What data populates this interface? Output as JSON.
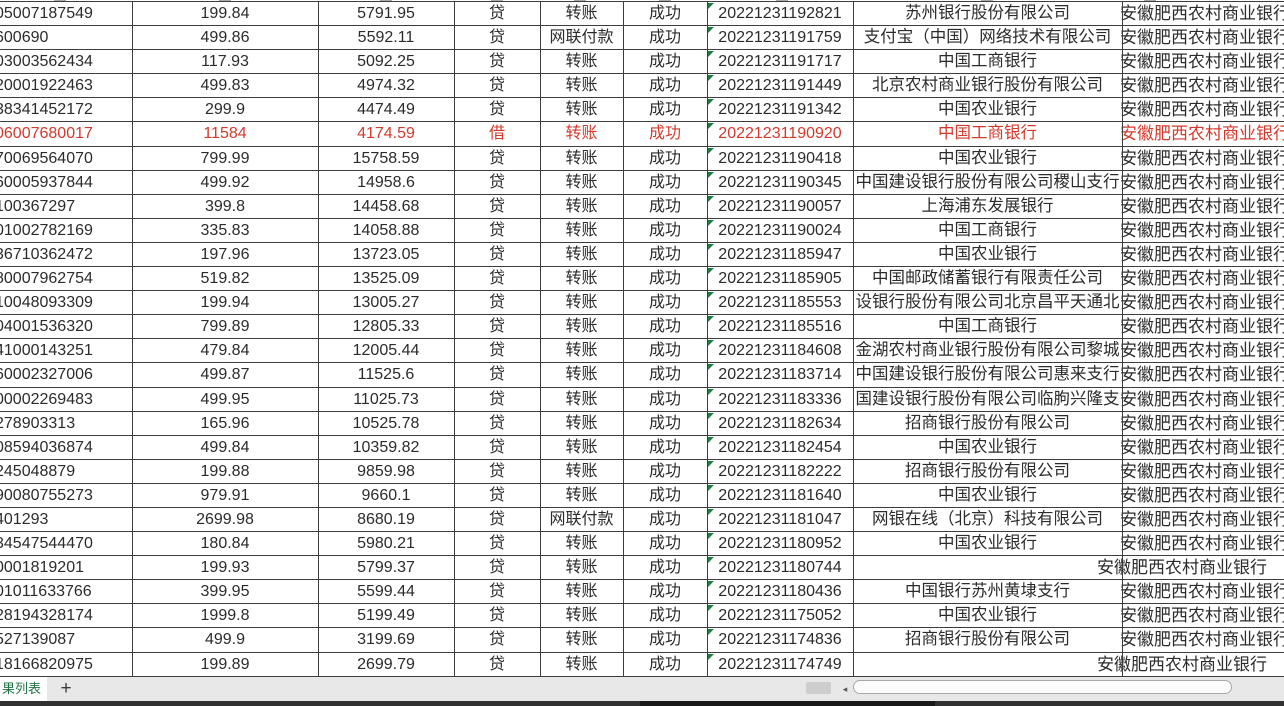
{
  "colors": {
    "red_row_text": "#d5392c",
    "error_indicator_green": "#1e7c41",
    "sheet_tab_green": "#217346",
    "grid_border": "#3d3d3d"
  },
  "table": {
    "column_keys": [
      "account",
      "amount",
      "balance",
      "dc",
      "type",
      "status",
      "time",
      "bank",
      "tail"
    ],
    "rows": [
      {
        "account": "05007187549",
        "amount": "199.84",
        "balance": "5791.95",
        "dc": "贷",
        "type": "转账",
        "status": "成功",
        "time": "20221231192821",
        "bank": "苏州银行股份有限公司",
        "tail": "安徽肥西农村商业银行",
        "red": false,
        "tail_shift": false
      },
      {
        "account": "600690",
        "amount": "499.86",
        "balance": "5592.11",
        "dc": "贷",
        "type": "网联付款",
        "status": "成功",
        "time": "20221231191759",
        "bank": "支付宝（中国）网络技术有限公司",
        "tail": "安徽肥西农村商业银行",
        "red": false,
        "tail_shift": false
      },
      {
        "account": "03003562434",
        "amount": "117.93",
        "balance": "5092.25",
        "dc": "贷",
        "type": "转账",
        "status": "成功",
        "time": "20221231191717",
        "bank": "中国工商银行",
        "tail": "安徽肥西农村商业银行",
        "red": false,
        "tail_shift": false
      },
      {
        "account": "20001922463",
        "amount": "499.83",
        "balance": "4974.32",
        "dc": "贷",
        "type": "转账",
        "status": "成功",
        "time": "20221231191449",
        "bank": "北京农村商业银行股份有限公司",
        "tail": "安徽肥西农村商业银行",
        "red": false,
        "tail_shift": false
      },
      {
        "account": "38341452172",
        "amount": "299.9",
        "balance": "4474.49",
        "dc": "贷",
        "type": "转账",
        "status": "成功",
        "time": "20221231191342",
        "bank": "中国农业银行",
        "tail": "安徽肥西农村商业银行",
        "red": false,
        "tail_shift": false
      },
      {
        "account": "06007680017",
        "amount": "11584",
        "balance": "4174.59",
        "dc": "借",
        "type": "转账",
        "status": "成功",
        "time": "20221231190920",
        "bank": "中国工商银行",
        "tail": "安徽肥西农村商业银行",
        "red": true,
        "tail_shift": false
      },
      {
        "account": "70069564070",
        "amount": "799.99",
        "balance": "15758.59",
        "dc": "贷",
        "type": "转账",
        "status": "成功",
        "time": "20221231190418",
        "bank": "中国农业银行",
        "tail": "安徽肥西农村商业银行",
        "red": false,
        "tail_shift": false
      },
      {
        "account": "60005937844",
        "amount": "499.92",
        "balance": "14958.6",
        "dc": "贷",
        "type": "转账",
        "status": "成功",
        "time": "20221231190345",
        "bank": "中国建设银行股份有限公司稷山支行",
        "tail": "安徽肥西农村商业银行",
        "red": false,
        "tail_shift": false
      },
      {
        "account": "100367297",
        "amount": "399.8",
        "balance": "14458.68",
        "dc": "贷",
        "type": "转账",
        "status": "成功",
        "time": "20221231190057",
        "bank": "上海浦东发展银行",
        "tail": "安徽肥西农村商业银行",
        "red": false,
        "tail_shift": false
      },
      {
        "account": "01002782169",
        "amount": "335.83",
        "balance": "14058.88",
        "dc": "贷",
        "type": "转账",
        "status": "成功",
        "time": "20221231190024",
        "bank": "中国工商银行",
        "tail": "安徽肥西农村商业银行",
        "red": false,
        "tail_shift": false
      },
      {
        "account": "36710362472",
        "amount": "197.96",
        "balance": "13723.05",
        "dc": "贷",
        "type": "转账",
        "status": "成功",
        "time": "20221231185947",
        "bank": "中国农业银行",
        "tail": "安徽肥西农村商业银行",
        "red": false,
        "tail_shift": false
      },
      {
        "account": "80007962754",
        "amount": "519.82",
        "balance": "13525.09",
        "dc": "贷",
        "type": "转账",
        "status": "成功",
        "time": "20221231185905",
        "bank": "中国邮政储蓄银行有限责任公司",
        "tail": "安徽肥西农村商业银行",
        "red": false,
        "tail_shift": false
      },
      {
        "account": "10048093309",
        "amount": "199.94",
        "balance": "13005.27",
        "dc": "贷",
        "type": "转账",
        "status": "成功",
        "time": "20221231185553",
        "bank": "设银行股份有限公司北京昌平天通北",
        "tail": "安徽肥西农村商业银行",
        "red": false,
        "tail_shift": false
      },
      {
        "account": "04001536320",
        "amount": "799.89",
        "balance": "12805.33",
        "dc": "贷",
        "type": "转账",
        "status": "成功",
        "time": "20221231185516",
        "bank": "中国工商银行",
        "tail": "安徽肥西农村商业银行",
        "red": false,
        "tail_shift": false
      },
      {
        "account": "41000143251",
        "amount": "479.84",
        "balance": "12005.44",
        "dc": "贷",
        "type": "转账",
        "status": "成功",
        "time": "20221231184608",
        "bank": "金湖农村商业银行股份有限公司黎城",
        "tail": "安徽肥西农村商业银行",
        "red": false,
        "tail_shift": false
      },
      {
        "account": "60002327006",
        "amount": "499.87",
        "balance": "11525.6",
        "dc": "贷",
        "type": "转账",
        "status": "成功",
        "time": "20221231183714",
        "bank": "中国建设银行股份有限公司惠来支行",
        "tail": "安徽肥西农村商业银行",
        "red": false,
        "tail_shift": false
      },
      {
        "account": "00002269483",
        "amount": "499.95",
        "balance": "11025.73",
        "dc": "贷",
        "type": "转账",
        "status": "成功",
        "time": "20221231183336",
        "bank": "国建设银行股份有限公司临朐兴隆支",
        "tail": "安徽肥西农村商业银行",
        "red": false,
        "tail_shift": false
      },
      {
        "account": "278903313",
        "amount": "165.96",
        "balance": "10525.78",
        "dc": "贷",
        "type": "转账",
        "status": "成功",
        "time": "20221231182634",
        "bank": "招商银行股份有限公司",
        "tail": "安徽肥西农村商业银行",
        "red": false,
        "tail_shift": false
      },
      {
        "account": "08594036874",
        "amount": "499.84",
        "balance": "10359.82",
        "dc": "贷",
        "type": "转账",
        "status": "成功",
        "time": "20221231182454",
        "bank": "中国农业银行",
        "tail": "安徽肥西农村商业银行",
        "red": false,
        "tail_shift": false
      },
      {
        "account": "245048879",
        "amount": "199.88",
        "balance": "9859.98",
        "dc": "贷",
        "type": "转账",
        "status": "成功",
        "time": "20221231182222",
        "bank": "招商银行股份有限公司",
        "tail": "安徽肥西农村商业银行",
        "red": false,
        "tail_shift": false
      },
      {
        "account": "90080755273",
        "amount": "979.91",
        "balance": "9660.1",
        "dc": "贷",
        "type": "转账",
        "status": "成功",
        "time": "20221231181640",
        "bank": "中国农业银行",
        "tail": "安徽肥西农村商业银行",
        "red": false,
        "tail_shift": false
      },
      {
        "account": "401293",
        "amount": "2699.98",
        "balance": "8680.19",
        "dc": "贷",
        "type": "网联付款",
        "status": "成功",
        "time": "20221231181047",
        "bank": "网银在线（北京）科技有限公司",
        "tail": "安徽肥西农村商业银行",
        "red": false,
        "tail_shift": false
      },
      {
        "account": "34547544470",
        "amount": "180.84",
        "balance": "5980.21",
        "dc": "贷",
        "type": "转账",
        "status": "成功",
        "time": "20221231180952",
        "bank": "中国农业银行",
        "tail": "安徽肥西农村商业银行",
        "red": false,
        "tail_shift": false
      },
      {
        "account": "0001819201",
        "amount": "199.93",
        "balance": "5799.37",
        "dc": "贷",
        "type": "转账",
        "status": "成功",
        "time": "20221231180744",
        "bank": "",
        "tail": "安徽肥西农村商业银行",
        "red": false,
        "tail_shift": true
      },
      {
        "account": "01011633766",
        "amount": "399.95",
        "balance": "5599.44",
        "dc": "贷",
        "type": "转账",
        "status": "成功",
        "time": "20221231180436",
        "bank": "中国银行苏州黄埭支行",
        "tail": "安徽肥西农村商业银行",
        "red": false,
        "tail_shift": false
      },
      {
        "account": "28194328174",
        "amount": "1999.8",
        "balance": "5199.49",
        "dc": "贷",
        "type": "转账",
        "status": "成功",
        "time": "20221231175052",
        "bank": "中国农业银行",
        "tail": "安徽肥西农村商业银行",
        "red": false,
        "tail_shift": false
      },
      {
        "account": "527139087",
        "amount": "499.9",
        "balance": "3199.69",
        "dc": "贷",
        "type": "转账",
        "status": "成功",
        "time": "20221231174836",
        "bank": "招商银行股份有限公司",
        "tail": "安徽肥西农村商业银行",
        "red": false,
        "tail_shift": false
      },
      {
        "account": "18166820975",
        "amount": "199.89",
        "balance": "2699.79",
        "dc": "贷",
        "type": "转账",
        "status": "成功",
        "time": "20221231174749",
        "bank": "",
        "tail": "安徽肥西农村商业银行",
        "red": false,
        "tail_shift": true
      }
    ]
  },
  "sheet_bar": {
    "active_tab_label": "果列表",
    "add_sheet_label": "+",
    "scroll_left_arrow": "◂"
  }
}
